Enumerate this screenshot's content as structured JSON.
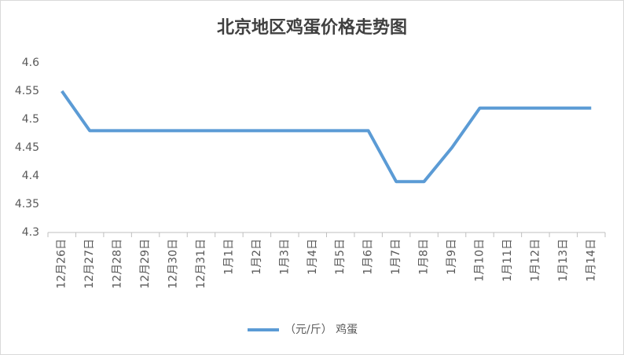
{
  "chart_data": {
    "type": "line",
    "title": "北京地区鸡蛋价格走势图",
    "categories": [
      "12月26日",
      "12月27日",
      "12月28日",
      "12月29日",
      "12月30日",
      "12月31日",
      "1月1日",
      "1月2日",
      "1月3日",
      "1月4日",
      "1月5日",
      "1月6日",
      "1月7日",
      "1月8日",
      "1月9日",
      "1月10日",
      "1月11日",
      "1月12日",
      "1月13日",
      "1月14日"
    ],
    "series": [
      {
        "name": "（元/斤） 鸡蛋",
        "color": "#5b9bd5",
        "values": [
          4.55,
          4.48,
          4.48,
          4.48,
          4.48,
          4.48,
          4.48,
          4.48,
          4.48,
          4.48,
          4.48,
          4.48,
          4.39,
          4.39,
          4.45,
          4.52,
          4.52,
          4.52,
          4.52,
          4.52
        ]
      }
    ],
    "ylim": [
      4.3,
      4.6
    ],
    "yticks": [
      4.3,
      4.35,
      4.4,
      4.45,
      4.5,
      4.55,
      4.6
    ],
    "grid": false,
    "legend": "bottom"
  }
}
